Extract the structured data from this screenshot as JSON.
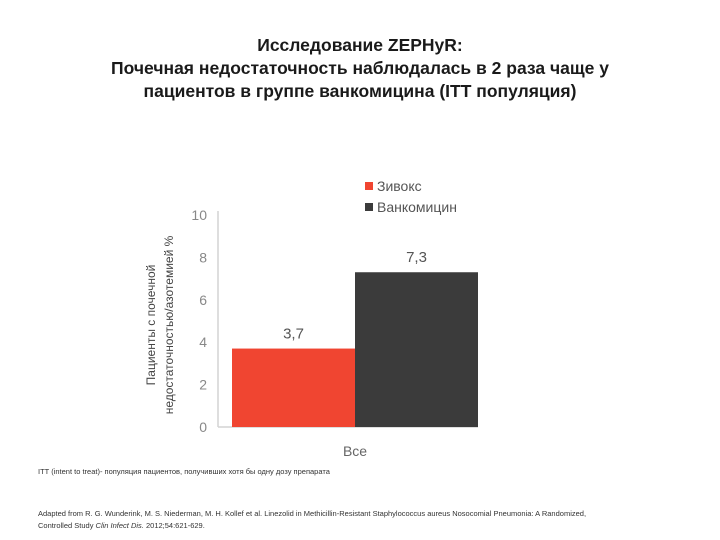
{
  "title": {
    "line1": "Исследование ZEPHyR:",
    "line2": "Почечная недостаточность наблюдалась в 2 раза чаще у",
    "line3": "пациентов в группе ванкомицина (ITT популяция)"
  },
  "chart_data": {
    "type": "bar",
    "categories": [
      "Все"
    ],
    "series": [
      {
        "name": "Зивокс",
        "values": [
          3.7
        ],
        "label": "3,7",
        "color": "#f04531"
      },
      {
        "name": "Ванкомицин",
        "values": [
          7.3
        ],
        "label": "7,3",
        "color": "#3b3b3b"
      }
    ],
    "ylabel_lines": [
      "Пациенты с почечной",
      "недостаточностью/азотемией %"
    ],
    "yticks": [
      "0",
      "2",
      "4",
      "6",
      "8",
      "10"
    ],
    "ylim": [
      0,
      10
    ],
    "grid": false,
    "legend_position": "top-right"
  },
  "footnote": "ITT (intent to treat)- популяция пациентов, получивших хотя бы одну дозу препарата",
  "source": {
    "text_before": "Adapted from R. G. Wunderink, M. S. Niederman, M. H. Kollef et al. Linezolid in Methicillin-Resistant Staphylococcus aureus Nosocomial Pneumonia: A Randomized,",
    "text_line2_start": "Controlled Study ",
    "journal": "Clin Infect Dis.",
    "text_line2_end": " 2012;54:621-629."
  },
  "colors": {
    "axis": "#d4d4d4",
    "tick_text": "#888888",
    "label_text": "#555555"
  }
}
